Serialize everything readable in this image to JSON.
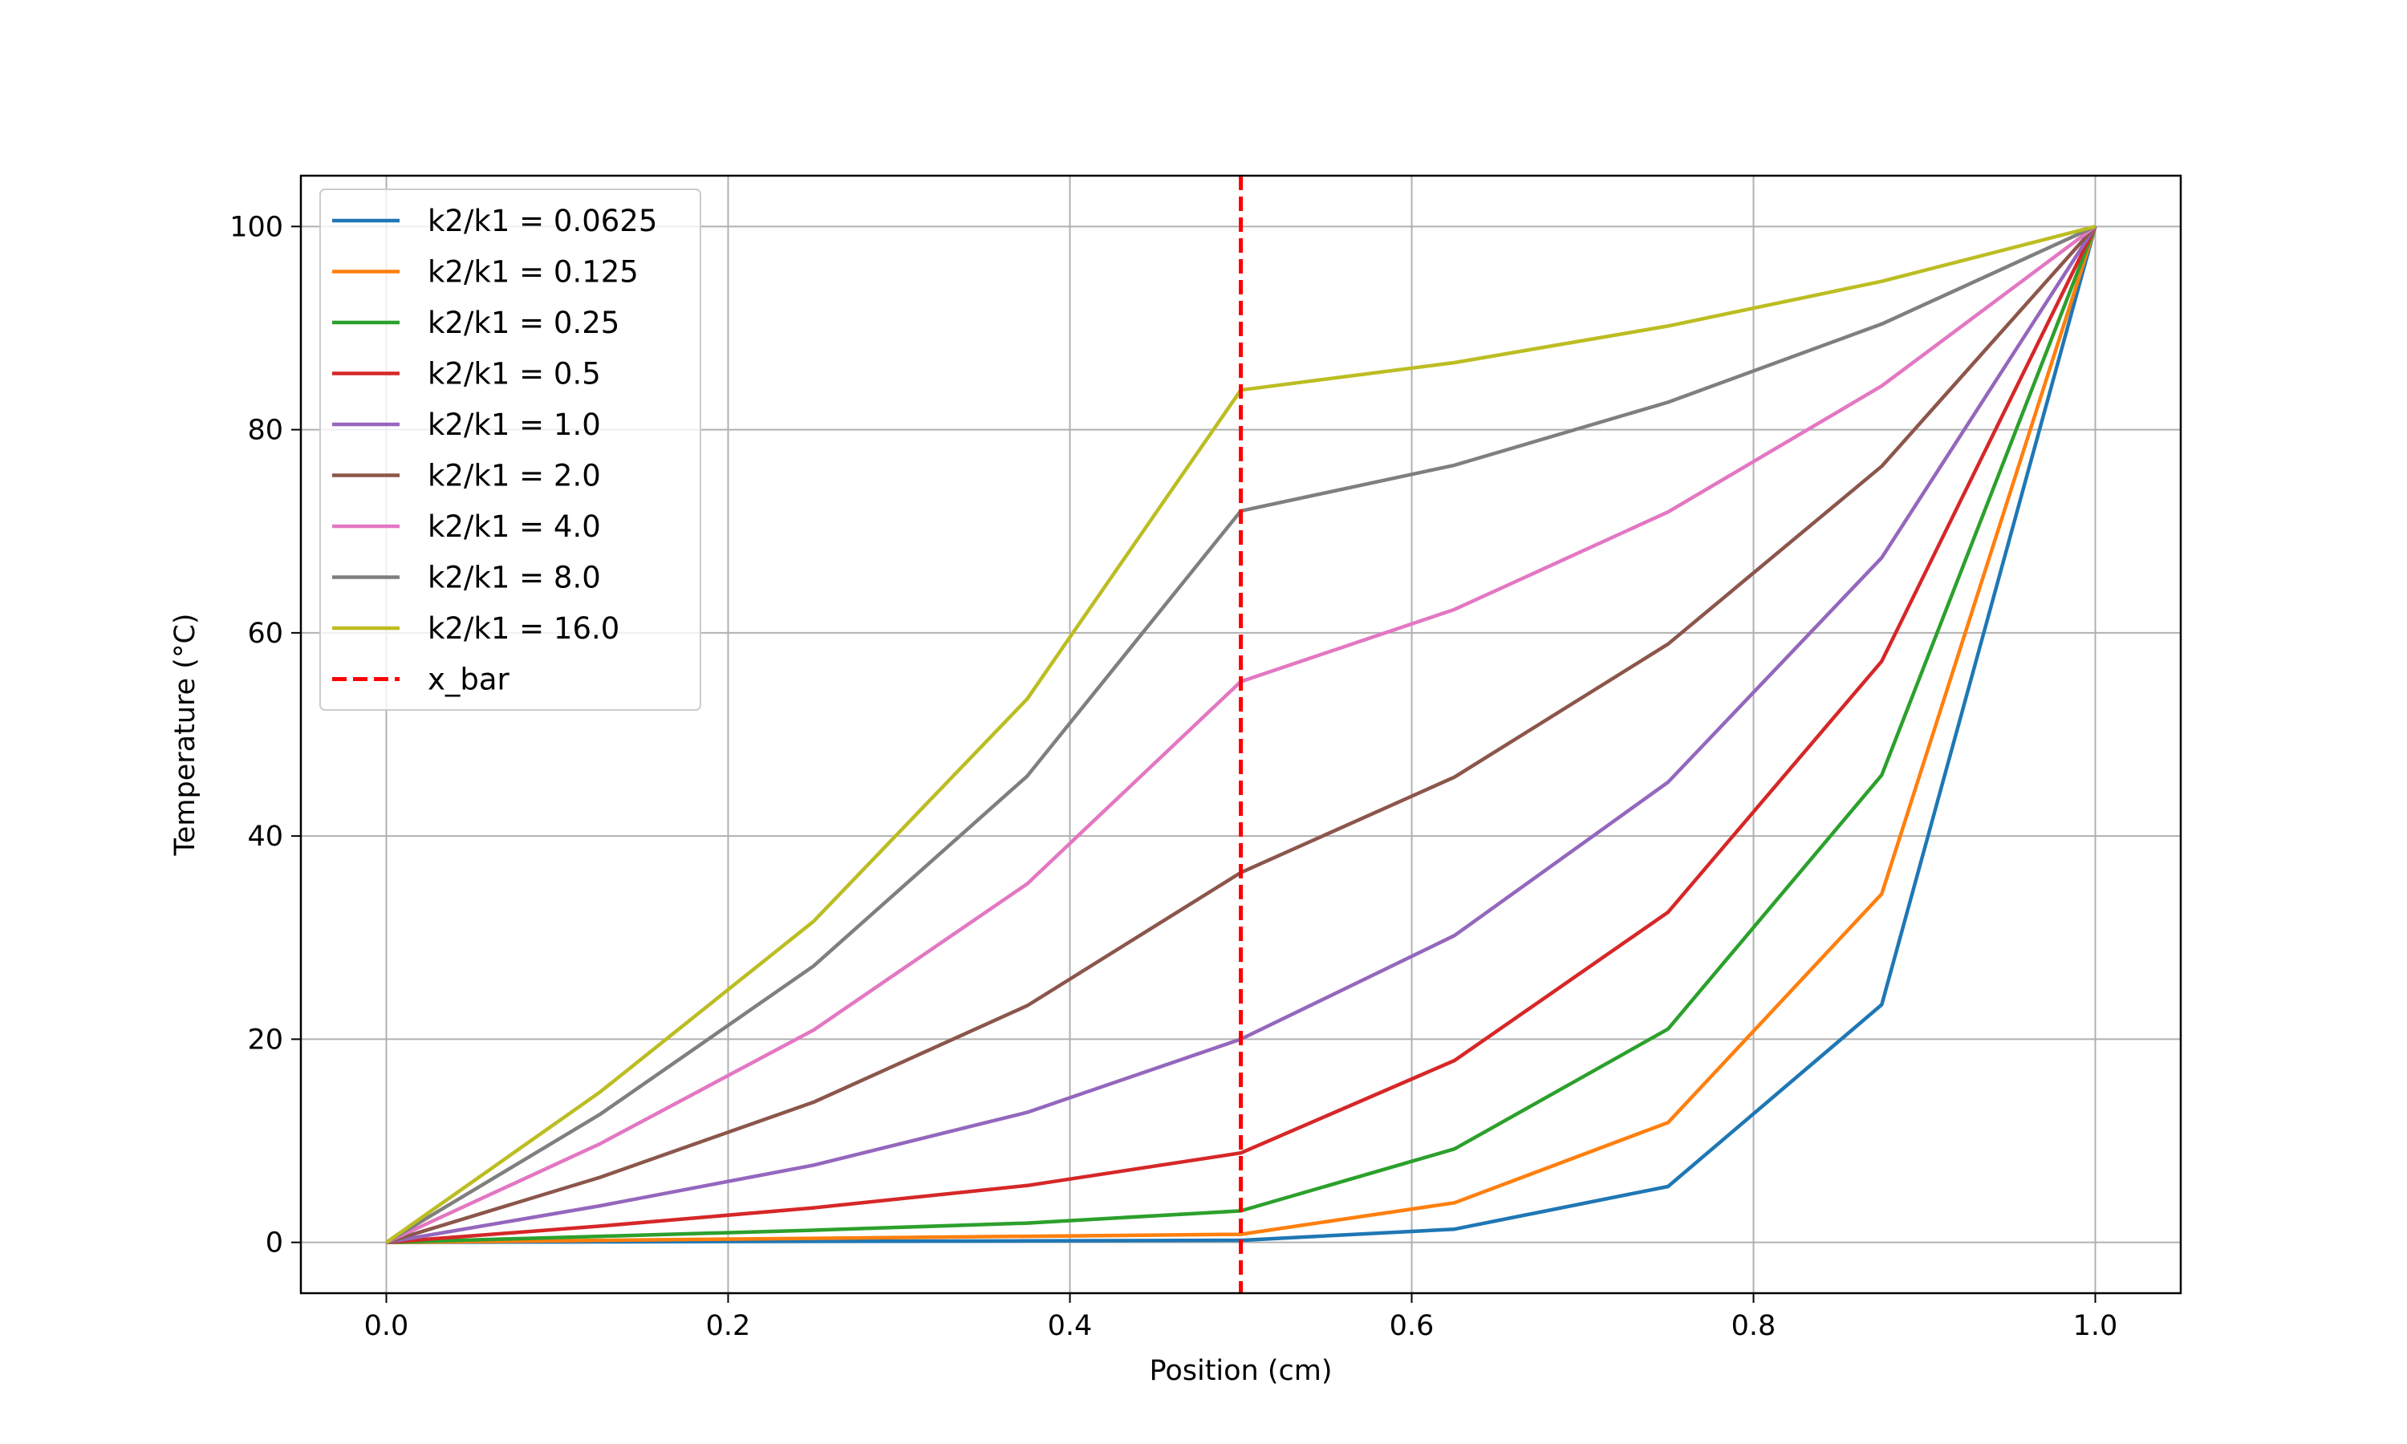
{
  "chart_data": {
    "type": "line",
    "title": "",
    "xlabel": "Position (cm)",
    "ylabel": "Temperature (°C)",
    "xlim": [
      -0.05,
      1.05
    ],
    "ylim": [
      -5,
      105
    ],
    "xticks": [
      0.0,
      0.2,
      0.4,
      0.6,
      0.8,
      1.0
    ],
    "xtick_labels": [
      "0.0",
      "0.2",
      "0.4",
      "0.6",
      "0.8",
      "1.0"
    ],
    "yticks": [
      0,
      20,
      40,
      60,
      80,
      100
    ],
    "ytick_labels": [
      "0",
      "20",
      "40",
      "60",
      "80",
      "100"
    ],
    "grid": true,
    "legend_position": "upper-left",
    "x": [
      0.0,
      0.125,
      0.25,
      0.375,
      0.5,
      0.625,
      0.75,
      0.875,
      1.0
    ],
    "series": [
      {
        "name": "k2/k1 = 0.0625",
        "color": "#1f77b4",
        "values": [
          0,
          0.05,
          0.1,
          0.15,
          0.2,
          1.3,
          5.5,
          23.4,
          100
        ]
      },
      {
        "name": "k2/k1 = 0.125",
        "color": "#ff7f0e",
        "values": [
          0,
          0.2,
          0.4,
          0.6,
          0.8,
          3.9,
          11.8,
          34.3,
          100
        ]
      },
      {
        "name": "k2/k1 = 0.25",
        "color": "#2ca02c",
        "values": [
          0,
          0.6,
          1.2,
          1.9,
          3.1,
          9.2,
          21.0,
          46.0,
          100
        ]
      },
      {
        "name": "k2/k1 = 0.5",
        "color": "#d62728",
        "values": [
          0,
          1.6,
          3.4,
          5.6,
          8.8,
          17.9,
          32.5,
          57.2,
          100
        ]
      },
      {
        "name": "k2/k1 = 1.0",
        "color": "#9467bd",
        "values": [
          0,
          3.6,
          7.6,
          12.8,
          20.0,
          30.2,
          45.3,
          67.4,
          100
        ]
      },
      {
        "name": "k2/k1 = 2.0",
        "color": "#8c564b",
        "values": [
          0,
          6.4,
          13.8,
          23.3,
          36.4,
          45.8,
          58.9,
          76.4,
          100
        ]
      },
      {
        "name": "k2/k1 = 4.0",
        "color": "#e377c2",
        "values": [
          0,
          9.7,
          20.9,
          35.3,
          55.2,
          62.3,
          71.9,
          84.3,
          100
        ]
      },
      {
        "name": "k2/k1 = 8.0",
        "color": "#7f7f7f",
        "values": [
          0,
          12.6,
          27.2,
          45.9,
          72.0,
          76.5,
          82.7,
          90.4,
          100
        ]
      },
      {
        "name": "k2/k1 = 16.0",
        "color": "#bcbd22",
        "values": [
          0,
          14.8,
          31.6,
          53.5,
          83.9,
          86.6,
          90.2,
          94.6,
          100
        ]
      }
    ],
    "vline": {
      "name": "x_bar",
      "x": 0.5,
      "color": "#ff0000",
      "style": "dashed"
    }
  }
}
